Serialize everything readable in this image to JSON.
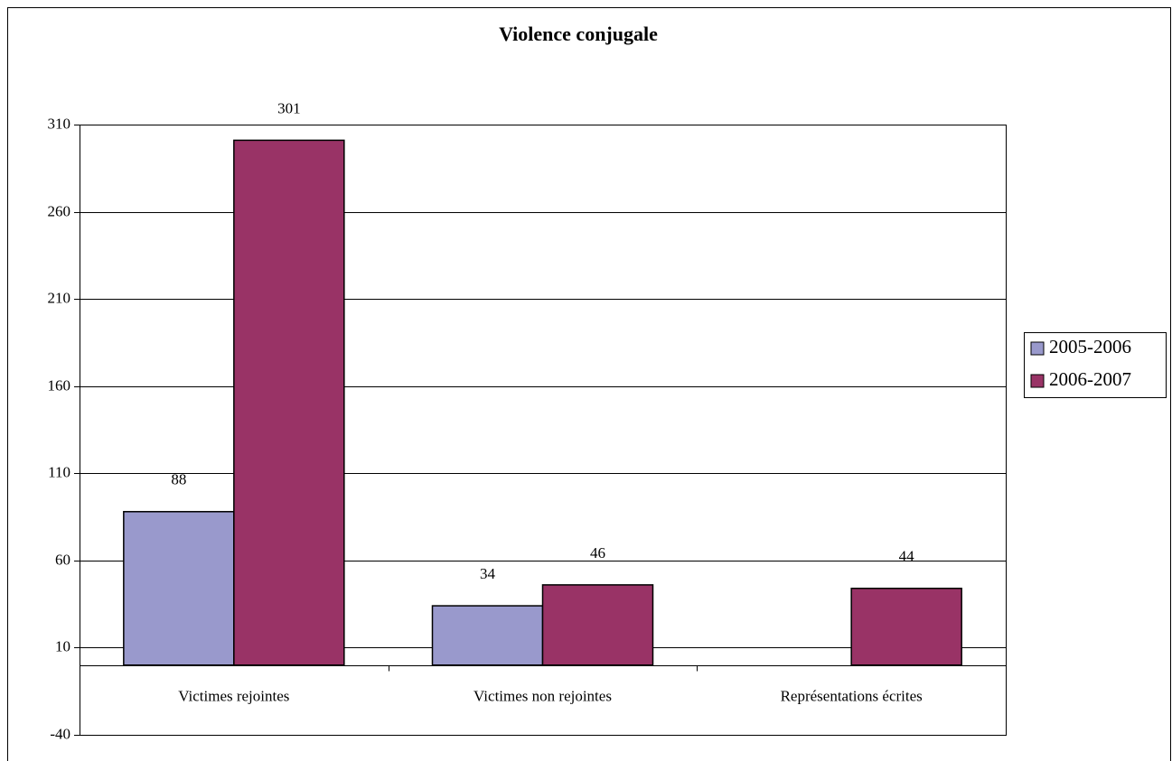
{
  "chart_data": {
    "type": "bar",
    "title": "Violence conjugale",
    "categories": [
      "Victimes rejointes",
      "Victimes non rejointes",
      "Représentations écrites"
    ],
    "series": [
      {
        "name": "2005-2006",
        "color": "#9999cc",
        "values": [
          88,
          34,
          null
        ]
      },
      {
        "name": "2006-2007",
        "color": "#993366",
        "values": [
          301,
          46,
          44
        ]
      }
    ],
    "ylim": [
      -40,
      310
    ],
    "yticks": [
      -40,
      10,
      60,
      110,
      160,
      210,
      260,
      310
    ],
    "grid": true,
    "legend": "right"
  }
}
